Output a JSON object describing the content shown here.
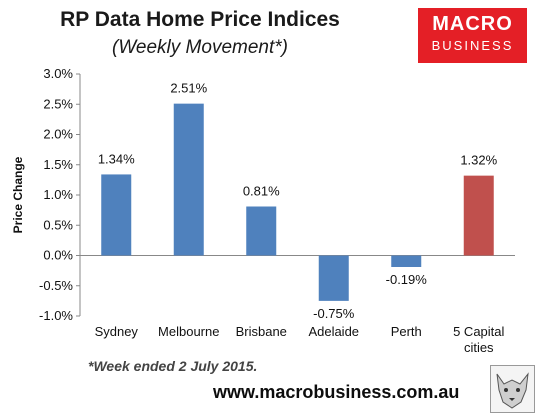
{
  "header": {
    "title": "RP Data Home Price Indices",
    "subtitle": "(Weekly Movement*)"
  },
  "logo": {
    "line1": "MACRO",
    "line2": "BUSINESS"
  },
  "footnote": "*Week ended 2 July 2015.",
  "url": "www.macrobusiness.com.au",
  "chart_data": {
    "type": "bar",
    "categories": [
      "Sydney",
      "Melbourne",
      "Brisbane",
      "Adelaide",
      "Perth",
      "5 Capital cities"
    ],
    "category_lines": [
      [
        "Sydney"
      ],
      [
        "Melbourne"
      ],
      [
        "Brisbane"
      ],
      [
        "Adelaide"
      ],
      [
        "Perth"
      ],
      [
        "5 Capital",
        "cities"
      ]
    ],
    "values": [
      1.34,
      2.51,
      0.81,
      -0.75,
      -0.19,
      1.32
    ],
    "data_labels": [
      "1.34%",
      "2.51%",
      "0.81%",
      "-0.75%",
      "-0.19%",
      "1.32%"
    ],
    "colors": [
      "#4f81bd",
      "#4f81bd",
      "#4f81bd",
      "#4f81bd",
      "#4f81bd",
      "#c0504d"
    ],
    "ylabel": "Price Change",
    "xlabel": "",
    "ylim": [
      -1.0,
      3.0
    ],
    "yticks": [
      3.0,
      2.5,
      2.0,
      1.5,
      1.0,
      0.5,
      0.0,
      -0.5,
      -1.0
    ],
    "ytick_labels": [
      "3.0%",
      "2.5%",
      "2.0%",
      "1.5%",
      "1.0%",
      "0.5%",
      "0.0%",
      "-0.5%",
      "-1.0%"
    ],
    "grid": false,
    "legend": "none"
  }
}
